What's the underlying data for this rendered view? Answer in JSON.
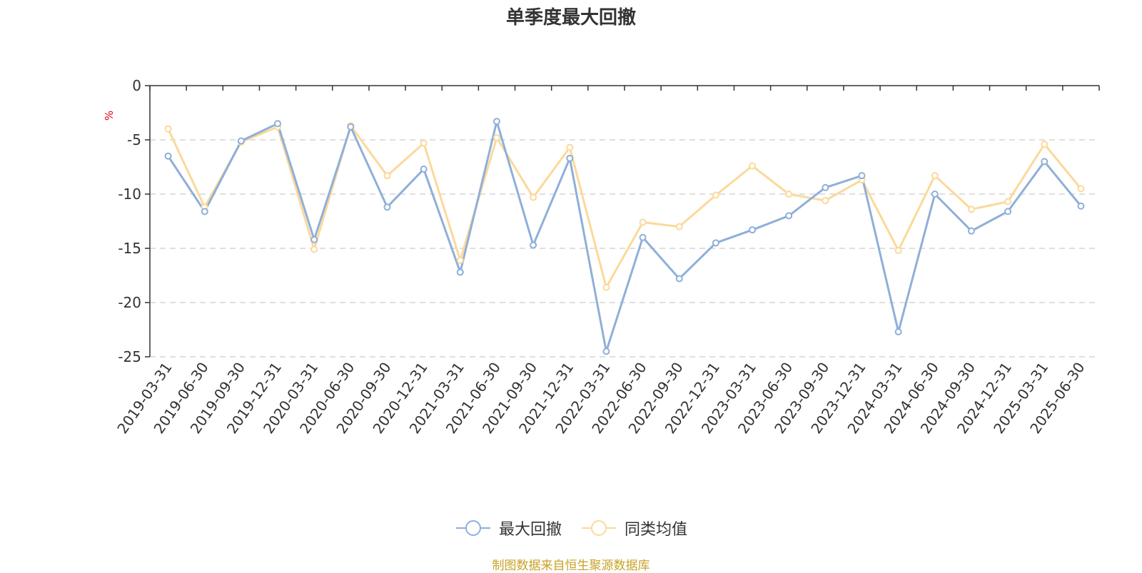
{
  "chart_data": {
    "type": "line",
    "title": "单季度最大回撤",
    "ylabel": "%",
    "xlabel": "",
    "ylim": [
      -25,
      0
    ],
    "yticks": [
      0,
      -5,
      -10,
      -15,
      -20,
      -25
    ],
    "grid": true,
    "legend_position": "bottom-center",
    "categories": [
      "2019-03-31",
      "2019-06-30",
      "2019-09-30",
      "2019-12-31",
      "2020-03-31",
      "2020-06-30",
      "2020-09-30",
      "2020-12-31",
      "2021-03-31",
      "2021-06-30",
      "2021-09-30",
      "2021-12-31",
      "2022-03-31",
      "2022-06-30",
      "2022-09-30",
      "2022-12-31",
      "2023-03-31",
      "2023-06-30",
      "2023-09-30",
      "2023-12-31",
      "2024-03-31",
      "2024-06-30",
      "2024-09-30",
      "2024-12-31",
      "2025-03-31",
      "2025-06-30"
    ],
    "series": [
      {
        "name": "最大回撤",
        "color": "#8fafd9",
        "values": [
          -6.5,
          -11.6,
          -5.1,
          -3.5,
          -14.2,
          -3.8,
          -11.2,
          -7.7,
          -17.2,
          -3.3,
          -14.7,
          -6.7,
          -24.5,
          -14.0,
          -17.8,
          -14.5,
          -13.3,
          -12.0,
          -9.4,
          -8.3,
          -22.7,
          -10.0,
          -13.4,
          -11.6,
          -7.0,
          -11.1
        ]
      },
      {
        "name": "同类均值",
        "color": "#fbd99a",
        "values": [
          -4.0,
          -11.2,
          -5.2,
          -3.8,
          -15.1,
          -3.7,
          -8.3,
          -5.3,
          -16.1,
          -4.8,
          -10.3,
          -5.7,
          -18.6,
          -12.6,
          -13.0,
          -10.1,
          -7.4,
          -10.0,
          -10.6,
          -8.7,
          -15.2,
          -8.3,
          -11.4,
          -10.7,
          -5.4,
          -9.5
        ]
      }
    ]
  },
  "source_note": "制图数据来自恒生聚源数据库"
}
